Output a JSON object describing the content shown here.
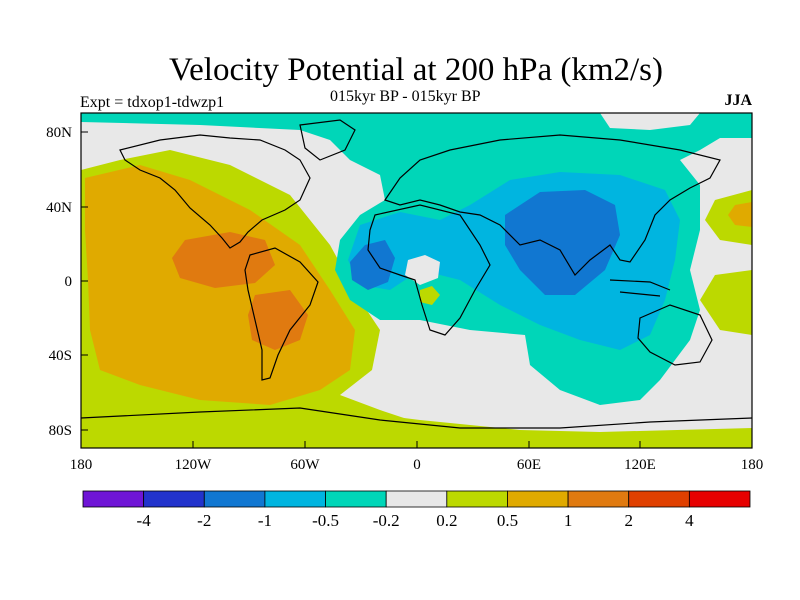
{
  "title": "Velocity Potential at 200 hPa (km2/s)",
  "subtitle": "015kyr BP - 015kyr BP",
  "left_label": "Expt = tdxop1-tdwzp1",
  "right_label": "JJA",
  "axes": {
    "lat_labels": [
      "80N",
      "40N",
      "0",
      "40S",
      "80S"
    ],
    "lon_labels": [
      "180",
      "120W",
      "60W",
      "0",
      "60E",
      "120E",
      "180"
    ]
  },
  "colorbar": {
    "labels": [
      "-4",
      "-2",
      "-1",
      "-0.5",
      "-0.2",
      "0.2",
      "0.5",
      "1",
      "2",
      "4"
    ],
    "colors": [
      "#6f15d6",
      "#2233cc",
      "#1177d1",
      "#00b5e0",
      "#00d6b8",
      "#e8e8e8",
      "#bcd900",
      "#e0aa00",
      "#e07a10",
      "#e04000",
      "#e60000"
    ]
  },
  "palette": {
    "ocean_gray": "#e8e8e8",
    "cyan": "#00d6b8",
    "light_blue": "#00b5e0",
    "blue": "#1177d1",
    "yellow_green": "#bcd900",
    "amber": "#e0aa00",
    "orange": "#e07a10"
  }
}
